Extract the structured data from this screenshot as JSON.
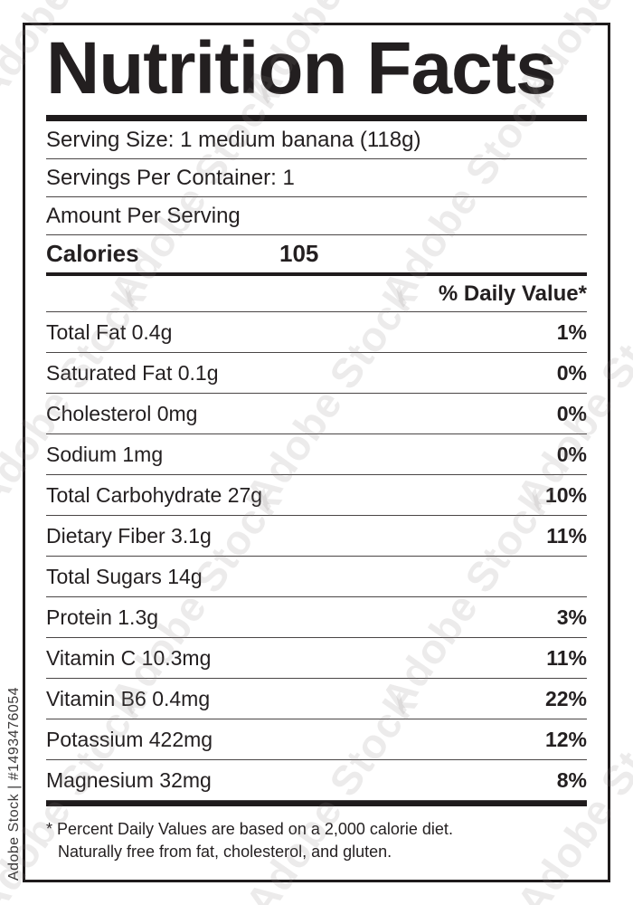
{
  "title": "Nutrition Facts",
  "serving": {
    "serving_size": "Serving Size: 1 medium banana (118g)",
    "servings_per_container": "Servings Per Container: 1",
    "amount_per_serving": "Amount Per Serving"
  },
  "calories": {
    "label": "Calories",
    "value": "105"
  },
  "daily_value_header": "% Daily Value*",
  "nutrients": [
    {
      "label": "Total Fat 0.4g",
      "dv": "1%"
    },
    {
      "label": "Saturated Fat 0.1g",
      "dv": "0%"
    },
    {
      "label": "Cholesterol 0mg",
      "dv": "0%"
    },
    {
      "label": "Sodium 1mg",
      "dv": "0%"
    },
    {
      "label": "Total Carbohydrate 27g",
      "dv": "10%"
    },
    {
      "label": "Dietary Fiber 3.1g",
      "dv": "11%"
    },
    {
      "label": "Total Sugars 14g",
      "dv": ""
    },
    {
      "label": "Protein 1.3g",
      "dv": "3%"
    },
    {
      "label": "Vitamin C 10.3mg",
      "dv": "11%"
    },
    {
      "label": "Vitamin B6 0.4mg",
      "dv": "22%"
    },
    {
      "label": "Potassium 422mg",
      "dv": "12%"
    },
    {
      "label": "Magnesium 32mg",
      "dv": "8%"
    }
  ],
  "footnote": {
    "line1": "* Percent Daily Values are based on a 2,000 calorie diet.",
    "line2": "Naturally free from fat, cholesterol, and gluten."
  },
  "watermark": {
    "id_text": "Adobe Stock | #1493476054",
    "tile_text": "Adobe Stock"
  },
  "colors": {
    "text": "#231f20",
    "rule_thin": "#4a4646",
    "rule_thick": "#1f1b1c",
    "background": "#ffffff"
  }
}
